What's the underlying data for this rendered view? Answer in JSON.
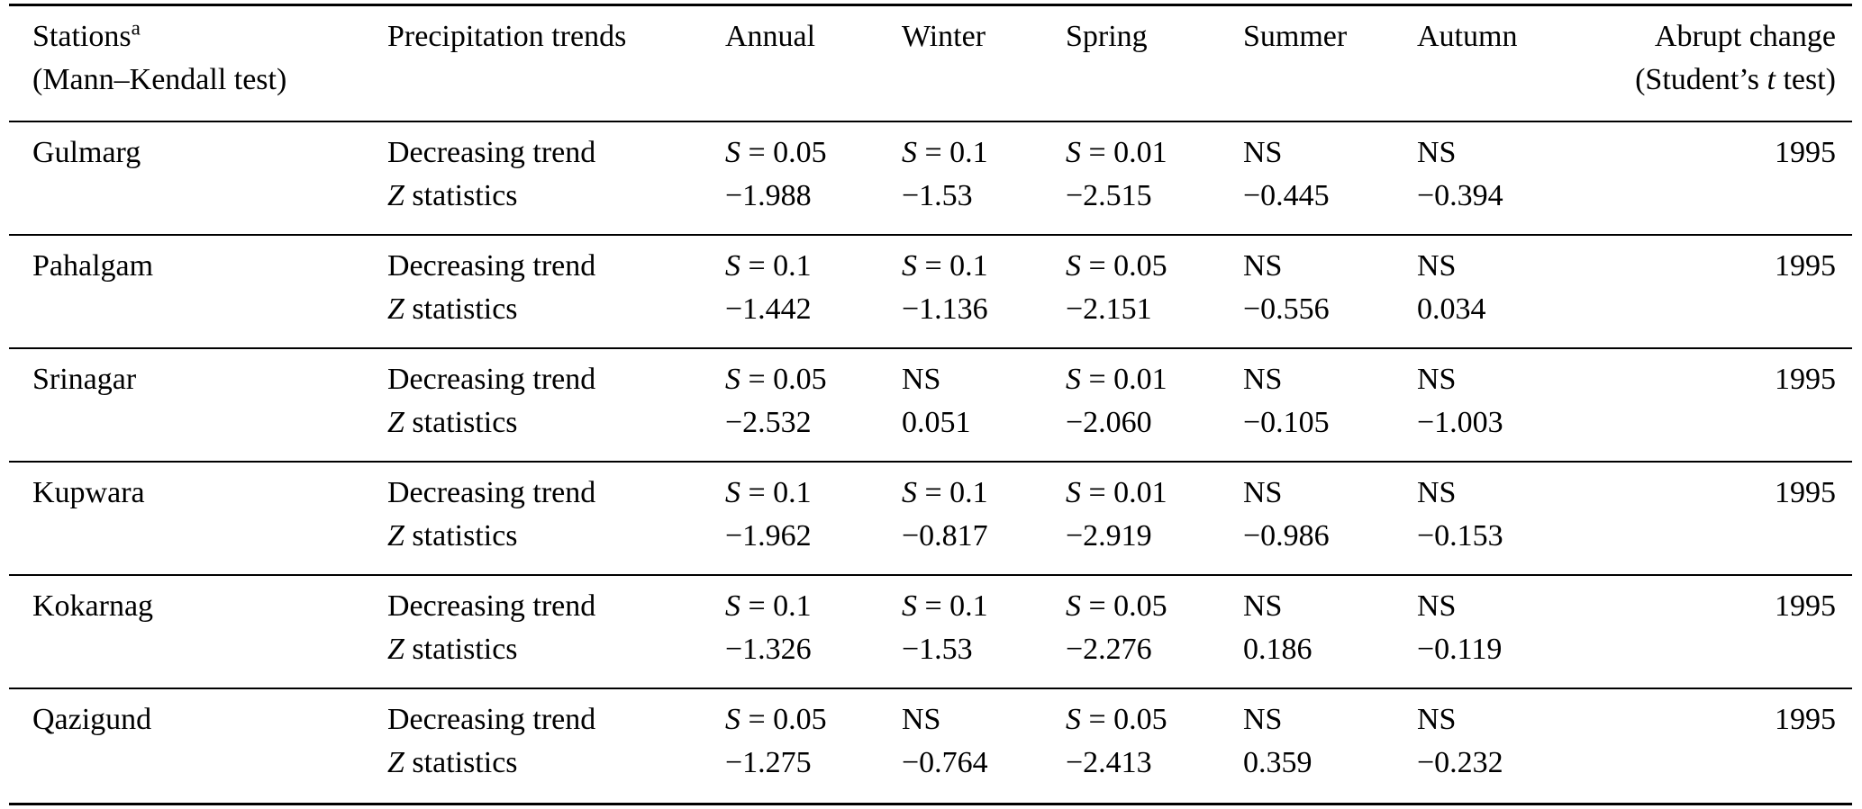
{
  "page": {
    "background_color": "#ffffff",
    "text_color": "#000000",
    "rule_color": "#000000"
  },
  "table": {
    "header": {
      "stations": "Stations",
      "stations_superscript": "a",
      "stations_line2": "(Mann–Kendall test)",
      "precipitation": "Precipitation trends",
      "annual": "Annual",
      "winter": "Winter",
      "spring": "Spring",
      "summer": "Summer",
      "autumn": "Autumn",
      "abrupt_line1": "Abrupt change",
      "abrupt_line2_prefix": "(Student’s ",
      "abrupt_line2_italic": "t",
      "abrupt_line2_suffix": " test)"
    },
    "rows": [
      {
        "station": "Gulmarg",
        "line1": {
          "trend": "Decreasing trend",
          "annual": "S = 0.05",
          "winter": "S = 0.1",
          "spring": "S = 0.01",
          "summer": "NS",
          "autumn": "NS",
          "abrupt": "1995"
        },
        "line2": {
          "trend": "Z statistics",
          "annual": "−1.988",
          "winter": "−1.53",
          "spring": "−2.515",
          "summer": "−0.445",
          "autumn": "−0.394",
          "abrupt": ""
        }
      },
      {
        "station": "Pahalgam",
        "line1": {
          "trend": "Decreasing trend",
          "annual": "S = 0.1",
          "winter": "S = 0.1",
          "spring": "S = 0.05",
          "summer": "NS",
          "autumn": "NS",
          "abrupt": "1995"
        },
        "line2": {
          "trend": "Z statistics",
          "annual": "−1.442",
          "winter": "−1.136",
          "spring": "−2.151",
          "summer": "−0.556",
          "autumn": "0.034",
          "abrupt": ""
        }
      },
      {
        "station": "Srinagar",
        "line1": {
          "trend": "Decreasing trend",
          "annual": "S = 0.05",
          "winter": "NS",
          "spring": "S = 0.01",
          "summer": "NS",
          "autumn": "NS",
          "abrupt": "1995"
        },
        "line2": {
          "trend": "Z statistics",
          "annual": "−2.532",
          "winter": "0.051",
          "spring": "−2.060",
          "summer": "−0.105",
          "autumn": "−1.003",
          "abrupt": ""
        }
      },
      {
        "station": "Kupwara",
        "line1": {
          "trend": "Decreasing trend",
          "annual": "S = 0.1",
          "winter": "S = 0.1",
          "spring": "S = 0.01",
          "summer": "NS",
          "autumn": "NS",
          "abrupt": "1995"
        },
        "line2": {
          "trend": "Z statistics",
          "annual": "−1.962",
          "winter": "−0.817",
          "spring": "−2.919",
          "summer": "−0.986",
          "autumn": "−0.153",
          "abrupt": ""
        }
      },
      {
        "station": "Kokarnag",
        "line1": {
          "trend": "Decreasing trend",
          "annual": "S = 0.1",
          "winter": "S = 0.1",
          "spring": "S = 0.05",
          "summer": "NS",
          "autumn": "NS",
          "abrupt": "1995"
        },
        "line2": {
          "trend": "Z statistics",
          "annual": "−1.326",
          "winter": "−1.53",
          "spring": "−2.276",
          "summer": "0.186",
          "autumn": "−0.119",
          "abrupt": ""
        }
      },
      {
        "station": "Qazigund",
        "line1": {
          "trend": "Decreasing trend",
          "annual": "S = 0.05",
          "winter": "NS",
          "spring": "S = 0.05",
          "summer": "NS",
          "autumn": "NS",
          "abrupt": "1995"
        },
        "line2": {
          "trend": "Z statistics",
          "annual": "−1.275",
          "winter": "−0.764",
          "spring": "−2.413",
          "summer": "0.359",
          "autumn": "−0.232",
          "abrupt": ""
        }
      }
    ]
  }
}
